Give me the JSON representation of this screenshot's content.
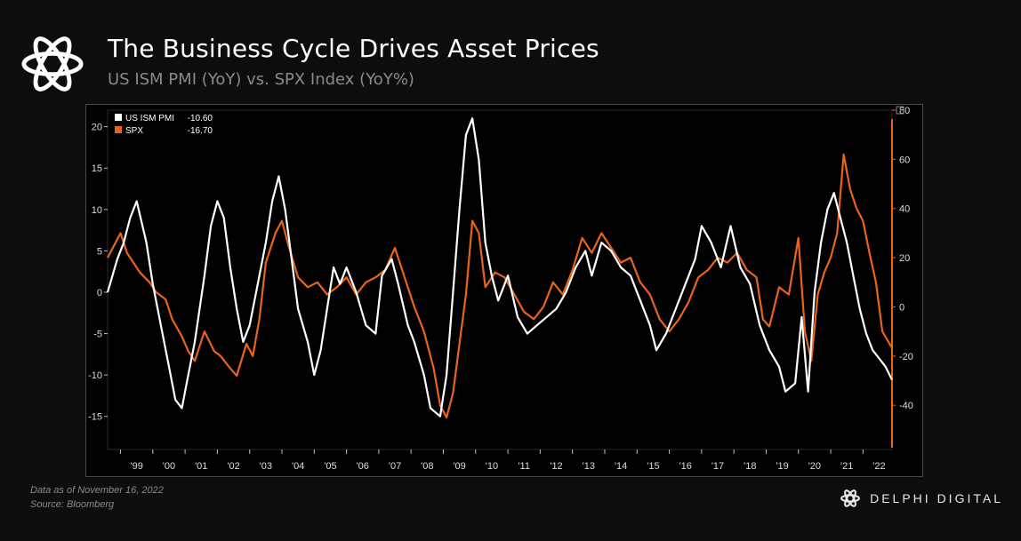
{
  "header": {
    "title": "The Business Cycle Drives Asset Prices",
    "subtitle": "US ISM PMI (YoY) vs. SPX Index (YoY%)"
  },
  "footer": {
    "note_date": "Data as of November 16, 2022",
    "note_source": "Source: Bloomberg",
    "brand": "DELPHI DIGITAL"
  },
  "chart_data": {
    "type": "line",
    "legend": [
      {
        "name": "US ISM PMI",
        "value": "-10.60",
        "color": "#ffffff"
      },
      {
        "name": "SPX",
        "value": "-16.70",
        "color": "#e8641b"
      }
    ],
    "legend_position": "top-left",
    "x_tick_labels": [
      "'99",
      "'00",
      "'01",
      "'02",
      "'03",
      "'04",
      "'05",
      "'06",
      "'07",
      "'08",
      "'09",
      "'10",
      "'11",
      "'12",
      "'13",
      "'14",
      "'15",
      "'16",
      "'17",
      "'18",
      "'19",
      "'20",
      "'21",
      "'22"
    ],
    "xlim": [
      1998.6,
      2022.9
    ],
    "left_axis": {
      "ylim": [
        -19,
        22
      ],
      "ticks": [
        20,
        15,
        10,
        5,
        0,
        -5,
        -10,
        -15
      ]
    },
    "right_axis": {
      "ylim": [
        -58,
        80
      ],
      "ticks": [
        80,
        60,
        40,
        20,
        0,
        -20,
        -40
      ]
    },
    "series": [
      {
        "name": "US ISM PMI",
        "axis": "left",
        "color": "#ffffff",
        "x": [
          1998.6,
          1998.9,
          1999.1,
          1999.3,
          1999.5,
          1999.8,
          2000.0,
          2000.3,
          2000.5,
          2000.7,
          2000.9,
          2001.1,
          2001.3,
          2001.6,
          2001.8,
          2002.0,
          2002.2,
          2002.4,
          2002.6,
          2002.8,
          2003.0,
          2003.2,
          2003.5,
          2003.7,
          2003.9,
          2004.1,
          2004.3,
          2004.5,
          2004.8,
          2005.0,
          2005.2,
          2005.4,
          2005.6,
          2005.8,
          2006.0,
          2006.3,
          2006.6,
          2006.9,
          2007.1,
          2007.4,
          2007.6,
          2007.9,
          2008.1,
          2008.4,
          2008.6,
          2008.9,
          2009.1,
          2009.3,
          2009.5,
          2009.7,
          2009.9,
          2010.1,
          2010.3,
          2010.5,
          2010.7,
          2011.0,
          2011.3,
          2011.6,
          2011.9,
          2012.2,
          2012.5,
          2012.8,
          2013.1,
          2013.4,
          2013.6,
          2013.9,
          2014.2,
          2014.5,
          2014.8,
          2015.1,
          2015.4,
          2015.6,
          2015.9,
          2016.2,
          2016.5,
          2016.8,
          2017.0,
          2017.3,
          2017.6,
          2017.9,
          2018.2,
          2018.5,
          2018.8,
          2019.1,
          2019.4,
          2019.6,
          2019.9,
          2020.1,
          2020.3,
          2020.5,
          2020.7,
          2020.9,
          2021.1,
          2021.3,
          2021.5,
          2021.7,
          2021.9,
          2022.1,
          2022.3,
          2022.5,
          2022.7,
          2022.9
        ],
        "values": [
          0,
          4,
          6,
          9,
          11,
          6,
          1,
          -5,
          -9,
          -13,
          -14,
          -10,
          -6,
          2,
          8,
          11,
          9,
          3,
          -2,
          -6,
          -4,
          0,
          6,
          11,
          14,
          10,
          4,
          -2,
          -6,
          -10,
          -7,
          -2,
          3,
          1,
          3,
          0,
          -4,
          -5,
          2,
          4,
          1,
          -4,
          -6,
          -10,
          -14,
          -15,
          -10,
          0,
          10,
          19,
          21,
          16,
          6,
          2,
          -1,
          2,
          -3,
          -5,
          -4,
          -3,
          -2,
          0,
          3,
          5,
          2,
          6,
          5,
          3,
          2,
          -1,
          -4,
          -7,
          -5,
          -2,
          1,
          4,
          8,
          6,
          3,
          8,
          3,
          1,
          -4,
          -7,
          -9,
          -12,
          -11,
          -3,
          -12,
          0,
          6,
          10,
          12,
          9,
          6,
          2,
          -2,
          -5,
          -7,
          -8,
          -9,
          -10.6
        ]
      },
      {
        "name": "SPX",
        "axis": "right",
        "color": "#e8641b",
        "x": [
          1998.6,
          1998.8,
          1999.0,
          1999.2,
          1999.4,
          1999.6,
          1999.9,
          2000.1,
          2000.4,
          2000.6,
          2000.9,
          2001.1,
          2001.3,
          2001.6,
          2001.9,
          2002.1,
          2002.4,
          2002.6,
          2002.9,
          2003.1,
          2003.3,
          2003.5,
          2003.8,
          2004.0,
          2004.2,
          2004.5,
          2004.8,
          2005.1,
          2005.4,
          2005.7,
          2006.0,
          2006.3,
          2006.6,
          2006.9,
          2007.2,
          2007.5,
          2007.8,
          2008.1,
          2008.4,
          2008.7,
          2008.9,
          2009.1,
          2009.3,
          2009.5,
          2009.7,
          2009.9,
          2010.1,
          2010.3,
          2010.6,
          2010.9,
          2011.2,
          2011.5,
          2011.8,
          2012.1,
          2012.4,
          2012.7,
          2013.0,
          2013.3,
          2013.6,
          2013.9,
          2014.2,
          2014.5,
          2014.8,
          2015.1,
          2015.4,
          2015.7,
          2016.0,
          2016.3,
          2016.6,
          2016.9,
          2017.2,
          2017.5,
          2017.8,
          2018.1,
          2018.4,
          2018.7,
          2018.9,
          2019.1,
          2019.4,
          2019.7,
          2020.0,
          2020.2,
          2020.4,
          2020.6,
          2020.8,
          2021.0,
          2021.2,
          2021.4,
          2021.6,
          2021.8,
          2022.0,
          2022.2,
          2022.4,
          2022.6,
          2022.9
        ],
        "values": [
          20,
          25,
          30,
          22,
          18,
          14,
          10,
          6,
          3,
          -5,
          -12,
          -18,
          -22,
          -10,
          -18,
          -20,
          -25,
          -28,
          -15,
          -20,
          -5,
          18,
          30,
          35,
          25,
          12,
          8,
          10,
          5,
          8,
          12,
          5,
          10,
          12,
          15,
          24,
          12,
          0,
          -10,
          -25,
          -40,
          -45,
          -35,
          -15,
          5,
          35,
          30,
          8,
          14,
          12,
          5,
          -2,
          -5,
          0,
          10,
          5,
          15,
          28,
          22,
          30,
          24,
          18,
          20,
          10,
          5,
          -5,
          -10,
          -5,
          2,
          12,
          15,
          20,
          18,
          22,
          15,
          12,
          -5,
          -8,
          8,
          5,
          28,
          -10,
          -22,
          5,
          14,
          20,
          30,
          62,
          48,
          40,
          35,
          22,
          10,
          -10,
          -16.7
        ]
      }
    ]
  }
}
